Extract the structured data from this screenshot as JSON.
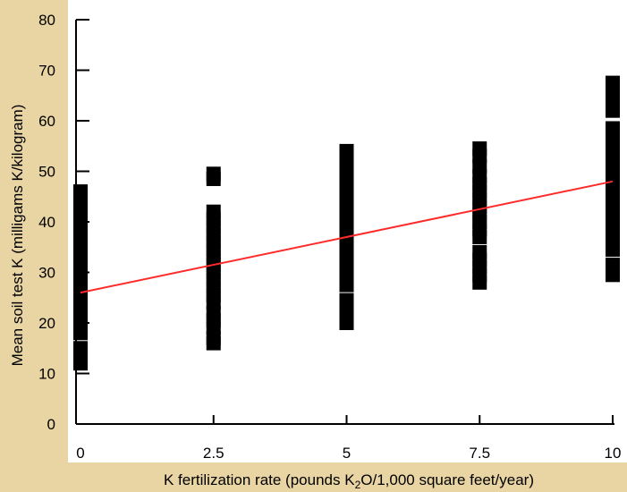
{
  "chart_data": {
    "type": "scatter",
    "title": "",
    "xlabel": "K fertilization rate (pounds K",
    "xlabel_sub": "2",
    "xlabel_rest": "O/1,000 square feet/year)",
    "ylabel": "Mean soil test K (milligams K/kilogram)",
    "xlim": [
      0,
      10
    ],
    "ylim": [
      0,
      80
    ],
    "x_ticks": [
      0,
      2.5,
      5,
      7.5,
      10
    ],
    "x_tick_labels": [
      "0",
      "2.5",
      "5",
      "7.5",
      "10"
    ],
    "y_ticks": [
      0,
      10,
      20,
      30,
      40,
      50,
      60,
      70,
      80
    ],
    "y_tick_labels": [
      "0",
      "10",
      "20",
      "30",
      "40",
      "50",
      "60",
      "70",
      "80"
    ],
    "grid": false,
    "series": [
      {
        "x": 0,
        "y": [
          12,
          13.5,
          15,
          18,
          19.5,
          21,
          22.5,
          24,
          25.5,
          27,
          28.5,
          30,
          31.5,
          33,
          35,
          36.5,
          38,
          39.5,
          41,
          42.5,
          44,
          46
        ]
      },
      {
        "x": 2.5,
        "y": [
          16,
          17,
          19,
          20.5,
          22,
          24,
          25.5,
          27,
          28.5,
          30,
          31.5,
          33,
          34.5,
          36,
          37.5,
          39,
          40.5,
          42,
          48.5,
          49.5
        ]
      },
      {
        "x": 5,
        "y": [
          20,
          21.5,
          23,
          24.5,
          27.5,
          29,
          30.5,
          32,
          33.5,
          35,
          36.5,
          38,
          39.5,
          41,
          42.5,
          45,
          46.5,
          48.5,
          50,
          52.5,
          54
        ]
      },
      {
        "x": 7.5,
        "y": [
          28,
          29.5,
          31,
          32.5,
          34,
          37,
          38.5,
          40,
          41.5,
          43,
          44.5,
          46,
          47.5,
          49,
          51,
          53,
          54.5
        ]
      },
      {
        "x": 10,
        "y": [
          29.5,
          30.5,
          31.5,
          34.5,
          36,
          37.5,
          39,
          40.5,
          42,
          43.5,
          45,
          46.5,
          48,
          49.5,
          51,
          52.5,
          54,
          55.5,
          57,
          58.5,
          62,
          63.5,
          66,
          67.5
        ]
      }
    ],
    "trendline": {
      "x": [
        0,
        10
      ],
      "y": [
        26,
        48
      ],
      "color": "#ff2a2a"
    },
    "colors": {
      "background": "#e8d5a3",
      "plot_area": "#ffffff",
      "points": "#000000"
    }
  }
}
